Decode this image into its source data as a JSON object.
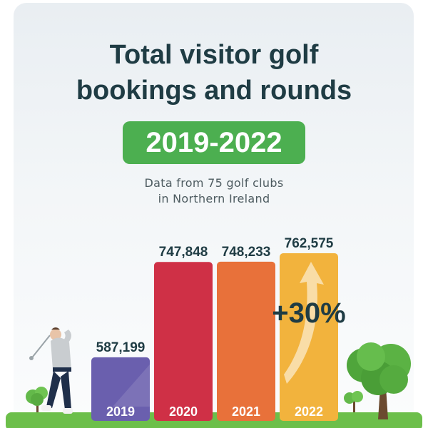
{
  "header": {
    "title_line1": "Total visitor golf",
    "title_line2": "bookings and rounds",
    "badge": "2019-2022",
    "subtitle_line1": "Data from 75 golf clubs",
    "subtitle_line2": "in Northern Ireland"
  },
  "colors": {
    "badge": "#4caf50",
    "bar_2019": "#6a5fae",
    "bar_2020": "#cf3046",
    "bar_2021": "#e8713a",
    "bar_2022": "#f2b33d",
    "ground": "#6cbf4a",
    "title": "#1f3c44"
  },
  "chart_data": {
    "type": "bar",
    "categories": [
      "2019",
      "2020",
      "2021",
      "2022"
    ],
    "values": [
      587199,
      747848,
      748233,
      762575
    ],
    "value_labels": [
      "587,199",
      "747,848",
      "748,233",
      "762,575"
    ],
    "annotation": "+30%"
  }
}
